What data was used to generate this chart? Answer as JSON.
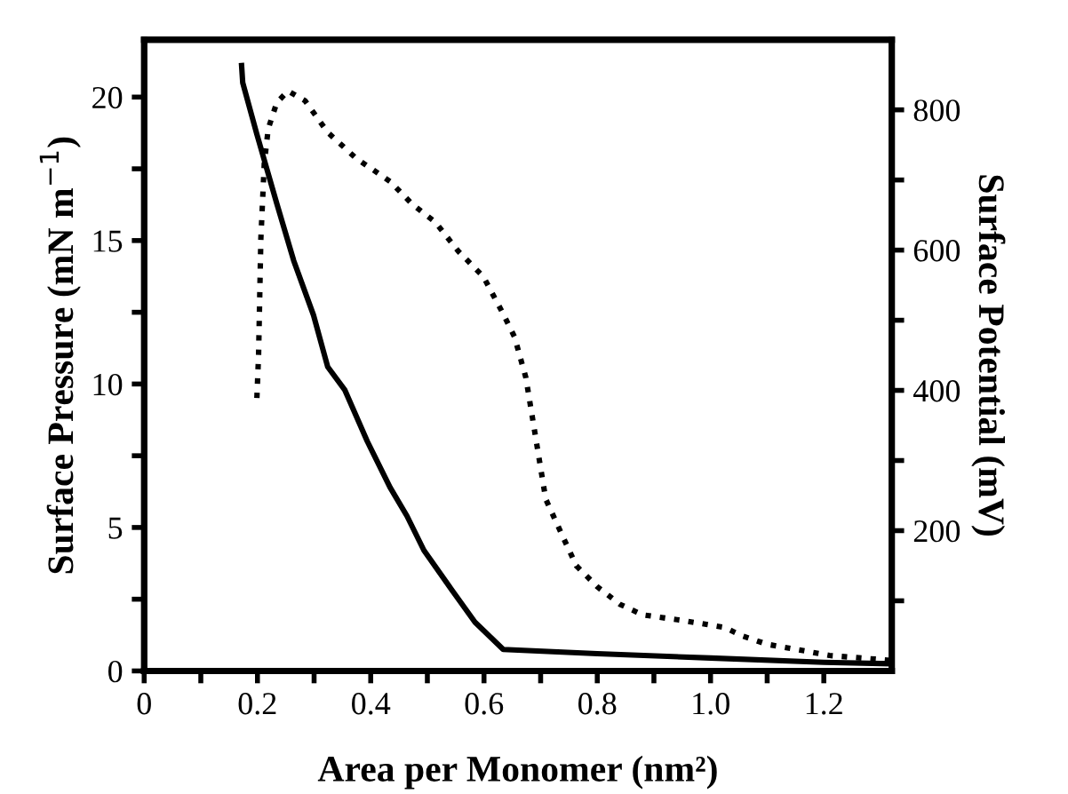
{
  "chart_data": {
    "type": "line",
    "xlabel": "Area per Monomer (nm²)",
    "ylabel": "Surface Pressure (mN m$^{−1}$)",
    "y2label": "Surface Potential (mV)",
    "xlim": [
      0,
      1.32
    ],
    "xticks": [
      0,
      {
        "value": 0.1,
        "label": null
      },
      0.2,
      {
        "value": 0.3,
        "label": null
      },
      0.4,
      {
        "value": 0.5,
        "label": null
      },
      0.6,
      {
        "value": 0.7,
        "label": null
      },
      0.8,
      {
        "value": 0.9,
        "label": null
      },
      "1.0",
      {
        "value": 1.1,
        "label": null
      },
      1.2
    ],
    "ylim": [
      0,
      22
    ],
    "yticks": [
      0,
      {
        "value": 2.5,
        "label": null
      },
      5,
      {
        "value": 7.5,
        "label": null
      },
      10,
      {
        "value": 12.5,
        "label": null
      },
      15,
      {
        "value": 17.5,
        "label": null
      },
      20
    ],
    "y2lim": [
      0,
      900
    ],
    "y2ticks": [
      {
        "value": 100,
        "label": null
      },
      200,
      {
        "value": 300,
        "label": null
      },
      400,
      {
        "value": 500,
        "label": null
      },
      600,
      {
        "value": 700,
        "label": null
      },
      800
    ],
    "grid": false,
    "legend": false,
    "marker": "none",
    "series": [
      {
        "color": "#000000",
        "line_style": "solid",
        "x": [
          0.172,
          0.174,
          0.199,
          0.234,
          0.264,
          0.299,
          0.324,
          0.354,
          0.394,
          0.434,
          0.464,
          0.494,
          0.544,
          0.584,
          0.634,
          0.8,
          1.0,
          1.2,
          1.32
        ],
        "values": [
          21.1,
          20.5,
          18.7,
          16.3,
          14.3,
          12.4,
          10.6,
          9.8,
          8.0,
          6.4,
          5.4,
          4.2,
          2.8,
          1.7,
          0.75,
          0.6,
          0.45,
          0.3,
          0.25
        ]
      },
      {
        "color": "#000000",
        "line_style": "dotted",
        "axis": "y2",
        "x": [
          0.199,
          0.202,
          0.206,
          0.212,
          0.219,
          0.234,
          0.254,
          0.284,
          0.324,
          0.374,
          0.434,
          0.474,
          0.514,
          0.554,
          0.599,
          0.634,
          0.654,
          0.674,
          0.694,
          0.709,
          0.74,
          0.763,
          0.8,
          0.84,
          0.88,
          0.95,
          1.025,
          1.056,
          1.1,
          1.17,
          1.21,
          1.32
        ],
        "values": [
          389,
          451,
          616,
          723,
          773,
          810,
          827,
          813,
          768,
          731,
          698,
          665,
          640,
          599,
          562,
          509,
          476,
          418,
          319,
          245,
          190,
          150,
          120,
          95,
          80,
          72,
          62,
          50,
          38,
          28,
          22,
          15
        ]
      }
    ]
  }
}
